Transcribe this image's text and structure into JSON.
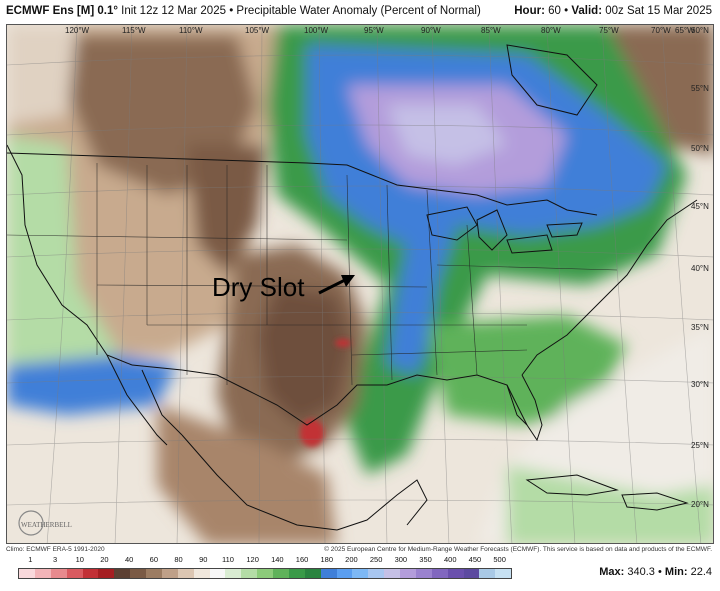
{
  "header": {
    "product": "ECMWF Ens [M] 0.1°",
    "init": "Init 12z 12 Mar 2025",
    "separator": "•",
    "field": "Precipitable Water Anomaly (Percent of Normal)",
    "hour_label": "Hour:",
    "hour_value": "60",
    "valid_label": "Valid:",
    "valid_value": "00z Sat 15 Mar 2025"
  },
  "map": {
    "annotation": "Dry Slot",
    "lon_labels": [
      "120°W",
      "115°W",
      "110°W",
      "105°W",
      "100°W",
      "95°W",
      "90°W",
      "85°W",
      "80°W",
      "75°W",
      "70°W",
      "65°W",
      "60°N"
    ],
    "lat_labels": [
      "55°N",
      "50°N",
      "45°N",
      "40°N",
      "35°N",
      "30°N",
      "25°N",
      "20°N"
    ],
    "logo_text": "WEATHERBELL"
  },
  "footer": {
    "climo": "Climo: ECMWF ERA-5 1991-2020",
    "copyright": "© 2025 European Centre for Medium-Range Weather Forecasts (ECMWF). This service is based on data and products of the ECMWF."
  },
  "colorbar": {
    "ticks": [
      "1",
      "3",
      "10",
      "20",
      "40",
      "60",
      "80",
      "90",
      "110",
      "120",
      "140",
      "160",
      "180",
      "200",
      "250",
      "300",
      "350",
      "400",
      "450",
      "500"
    ],
    "colors": [
      "#f9d9dc",
      "#f2b4b8",
      "#e88a8e",
      "#d95a60",
      "#c23036",
      "#a51e22",
      "#5c4033",
      "#7a5a45",
      "#9c7c62",
      "#bfa088",
      "#dcc6b2",
      "#f0e7dc",
      "#f7f7f7",
      "#d9ecd2",
      "#b4dca6",
      "#8ccb7a",
      "#5fb25a",
      "#3a9a48",
      "#2a8440",
      "#3f7fd8",
      "#5a9ef0",
      "#7db8f5",
      "#a8c6f0",
      "#c5c0e6",
      "#b39ddb",
      "#9a82cf",
      "#8167bf",
      "#6a50ad",
      "#5c4aa0",
      "#a9c9e6",
      "#c6e0f2"
    ]
  },
  "stats": {
    "max_label": "Max:",
    "max_value": "340.3",
    "sep": "•",
    "min_label": "Min:",
    "min_value": "22.4"
  }
}
